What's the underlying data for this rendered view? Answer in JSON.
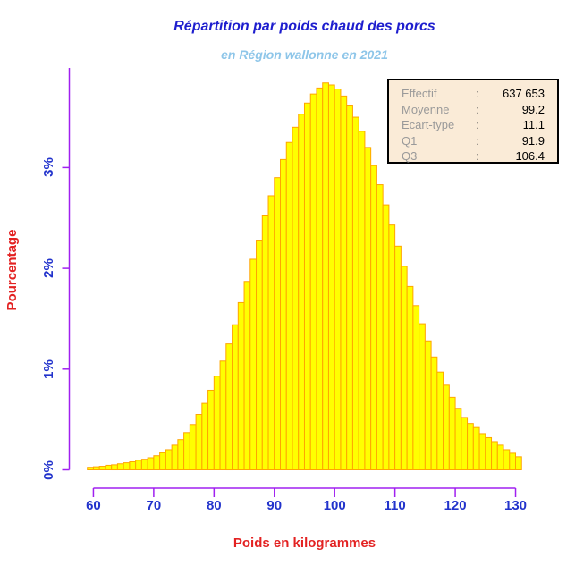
{
  "title": "Répartition par poids chaud des porcs",
  "subtitle": "en Région wallonne en 2021",
  "stats_box": {
    "rows": [
      {
        "label": "Effectif",
        "sep": ":",
        "value": "637 653"
      },
      {
        "label": "Moyenne",
        "sep": ":",
        "value": "99.2"
      },
      {
        "label": "Ecart-type",
        "sep": ":",
        "value": "11.1"
      },
      {
        "label": "Q1",
        "sep": ":",
        "value": "91.9"
      },
      {
        "label": "Q3",
        "sep": ":",
        "value": "106.4"
      }
    ]
  },
  "chart_data": {
    "type": "bar",
    "subtype": "histogram",
    "title": "Répartition par poids chaud des porcs",
    "subtitle": "en Région wallonne en 2021",
    "xlabel": "Poids en kilogrammes",
    "ylabel": "Pourcentage",
    "x_ticks": [
      60,
      70,
      80,
      90,
      100,
      110,
      120,
      130
    ],
    "y_ticks_percent": [
      0,
      1,
      2,
      3
    ],
    "y_tick_labels": [
      "0%",
      "1%",
      "2%",
      "3%"
    ],
    "ylim_percent": [
      0,
      3.99
    ],
    "xlim_kg": [
      56.1,
      133.9
    ],
    "grid": "off",
    "bin_start_kg": 59,
    "bin_width_kg": 1,
    "values_percent": [
      0.025,
      0.03,
      0.035,
      0.045,
      0.05,
      0.06,
      0.07,
      0.08,
      0.095,
      0.105,
      0.12,
      0.14,
      0.17,
      0.2,
      0.245,
      0.3,
      0.37,
      0.45,
      0.55,
      0.66,
      0.79,
      0.93,
      1.08,
      1.25,
      1.44,
      1.66,
      1.87,
      2.09,
      2.28,
      2.52,
      2.72,
      2.9,
      3.08,
      3.25,
      3.4,
      3.53,
      3.64,
      3.73,
      3.79,
      3.84,
      3.82,
      3.78,
      3.71,
      3.62,
      3.5,
      3.36,
      3.2,
      3.02,
      2.83,
      2.63,
      2.43,
      2.22,
      2.02,
      1.82,
      1.63,
      1.45,
      1.28,
      1.12,
      0.97,
      0.84,
      0.72,
      0.61,
      0.52,
      0.46,
      0.42,
      0.36,
      0.32,
      0.28,
      0.245,
      0.2,
      0.165,
      0.13
    ],
    "summary": {
      "effectif": "637 653",
      "moyenne": 99.2,
      "ecart_type": 11.1,
      "q1": 91.9,
      "q3": 106.4
    }
  },
  "colors": {
    "title": "#1E1ECE",
    "subtitle": "#8EC6E9",
    "axis_line": "#A020F0",
    "tick_label": "#2233CC",
    "axis_title": "#E32222",
    "bar_fill": "#FFFF00",
    "bar_border": "#FFA500",
    "stats_bg": "#FAEBD7",
    "stats_border": "#000000",
    "stats_label_text": "#9A9A9A",
    "stats_value_text": "#000000"
  }
}
